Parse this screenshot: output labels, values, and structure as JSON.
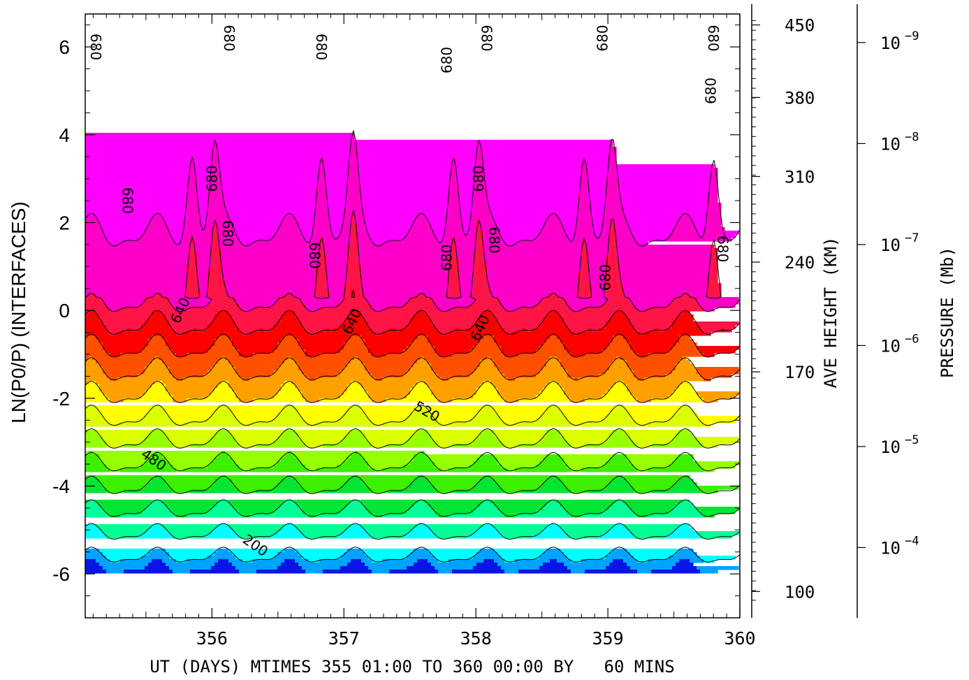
{
  "chart_data": {
    "type": "heatmap",
    "subtype": "filled-contour",
    "ylabel": "LN(P0/P) (INTERFACES)",
    "xlabel": "UT (DAYS) MTIMES 355 01:00 TO 360 00:00 BY   60 MINS",
    "xlim": [
      355.04,
      360.0
    ],
    "ylim": [
      -7.0,
      6.75
    ],
    "x_ticks": [
      "356",
      "357",
      "358",
      "359",
      "360"
    ],
    "x_tick_values": [
      356,
      357,
      358,
      359,
      360
    ],
    "y_ticks": [
      "6",
      "4",
      "2",
      "0",
      "-2",
      "-4",
      "-6"
    ],
    "y_tick_values": [
      6,
      4,
      2,
      0,
      -2,
      -4,
      -6
    ],
    "height_axis": {
      "label": "AVE HEIGHT (KM)",
      "ticks": [
        "450",
        "380",
        "310",
        "240",
        "170",
        "100"
      ],
      "tick_positions_lnp": [
        6.5,
        4.85,
        3.05,
        1.1,
        -1.4,
        -6.4
      ]
    },
    "pressure_axis": {
      "label": "PRESSURE (Mb)",
      "ticks": [
        "10",
        "10",
        "10",
        "10",
        "10",
        "10"
      ],
      "exponents": [
        "−9",
        "−8",
        "−7",
        "−6",
        "−5",
        "−4"
      ],
      "tick_positions_lnp": [
        6.1,
        3.8,
        1.5,
        -0.8,
        -3.1,
        -5.4
      ]
    },
    "contour_levels": [
      200,
      240,
      280,
      320,
      360,
      400,
      440,
      480,
      520,
      560,
      600,
      640,
      680
    ],
    "level_colors": [
      "#0a14e6",
      "#00a3ff",
      "#00ffff",
      "#00ff96",
      "#00e632",
      "#3cf000",
      "#96ff00",
      "#dcff00",
      "#ffff00",
      "#ffa000",
      "#ff5000",
      "#ff0000",
      "#ff1446",
      "#ff00c8",
      "#ff00ff"
    ],
    "contour_labels": [
      {
        "text": "680",
        "x": 355.12,
        "y": 6.0,
        "rotation": 90
      },
      {
        "text": "680",
        "x": 355.36,
        "y": 2.5,
        "rotation": 90
      },
      {
        "text": "680",
        "x": 356.0,
        "y": 3.0,
        "rotation": -90
      },
      {
        "text": "680",
        "x": 356.13,
        "y": 6.2,
        "rotation": 90
      },
      {
        "text": "680",
        "x": 356.12,
        "y": 1.75,
        "rotation": 90
      },
      {
        "text": "680",
        "x": 356.83,
        "y": 6.0,
        "rotation": 90
      },
      {
        "text": "680",
        "x": 356.78,
        "y": 1.25,
        "rotation": 90
      },
      {
        "text": "680",
        "x": 357.78,
        "y": 5.7,
        "rotation": -90
      },
      {
        "text": "680",
        "x": 357.78,
        "y": 1.2,
        "rotation": -90
      },
      {
        "text": "680",
        "x": 358.08,
        "y": 6.2,
        "rotation": 90
      },
      {
        "text": "680",
        "x": 358.02,
        "y": 3.0,
        "rotation": -90
      },
      {
        "text": "680",
        "x": 358.14,
        "y": 1.6,
        "rotation": 90
      },
      {
        "text": "680",
        "x": 358.96,
        "y": 6.2,
        "rotation": -90
      },
      {
        "text": "680",
        "x": 358.98,
        "y": 0.75,
        "rotation": -90
      },
      {
        "text": "680",
        "x": 359.8,
        "y": 6.2,
        "rotation": 90
      },
      {
        "text": "680",
        "x": 359.78,
        "y": 5.0,
        "rotation": -90
      },
      {
        "text": "680",
        "x": 359.87,
        "y": 1.4,
        "rotation": 90
      },
      {
        "text": "640",
        "x": 355.76,
        "y": 0.0,
        "rotation": -65
      },
      {
        "text": "640",
        "x": 357.06,
        "y": -0.25,
        "rotation": -65
      },
      {
        "text": "640",
        "x": 358.03,
        "y": -0.4,
        "rotation": -65
      },
      {
        "text": "520",
        "x": 357.63,
        "y": -2.3,
        "rotation": 30
      },
      {
        "text": "480",
        "x": 355.56,
        "y": -3.4,
        "rotation": 35
      },
      {
        "text": "200",
        "x": 356.33,
        "y": -5.35,
        "rotation": 35
      }
    ],
    "grid": false,
    "legend": "none"
  }
}
